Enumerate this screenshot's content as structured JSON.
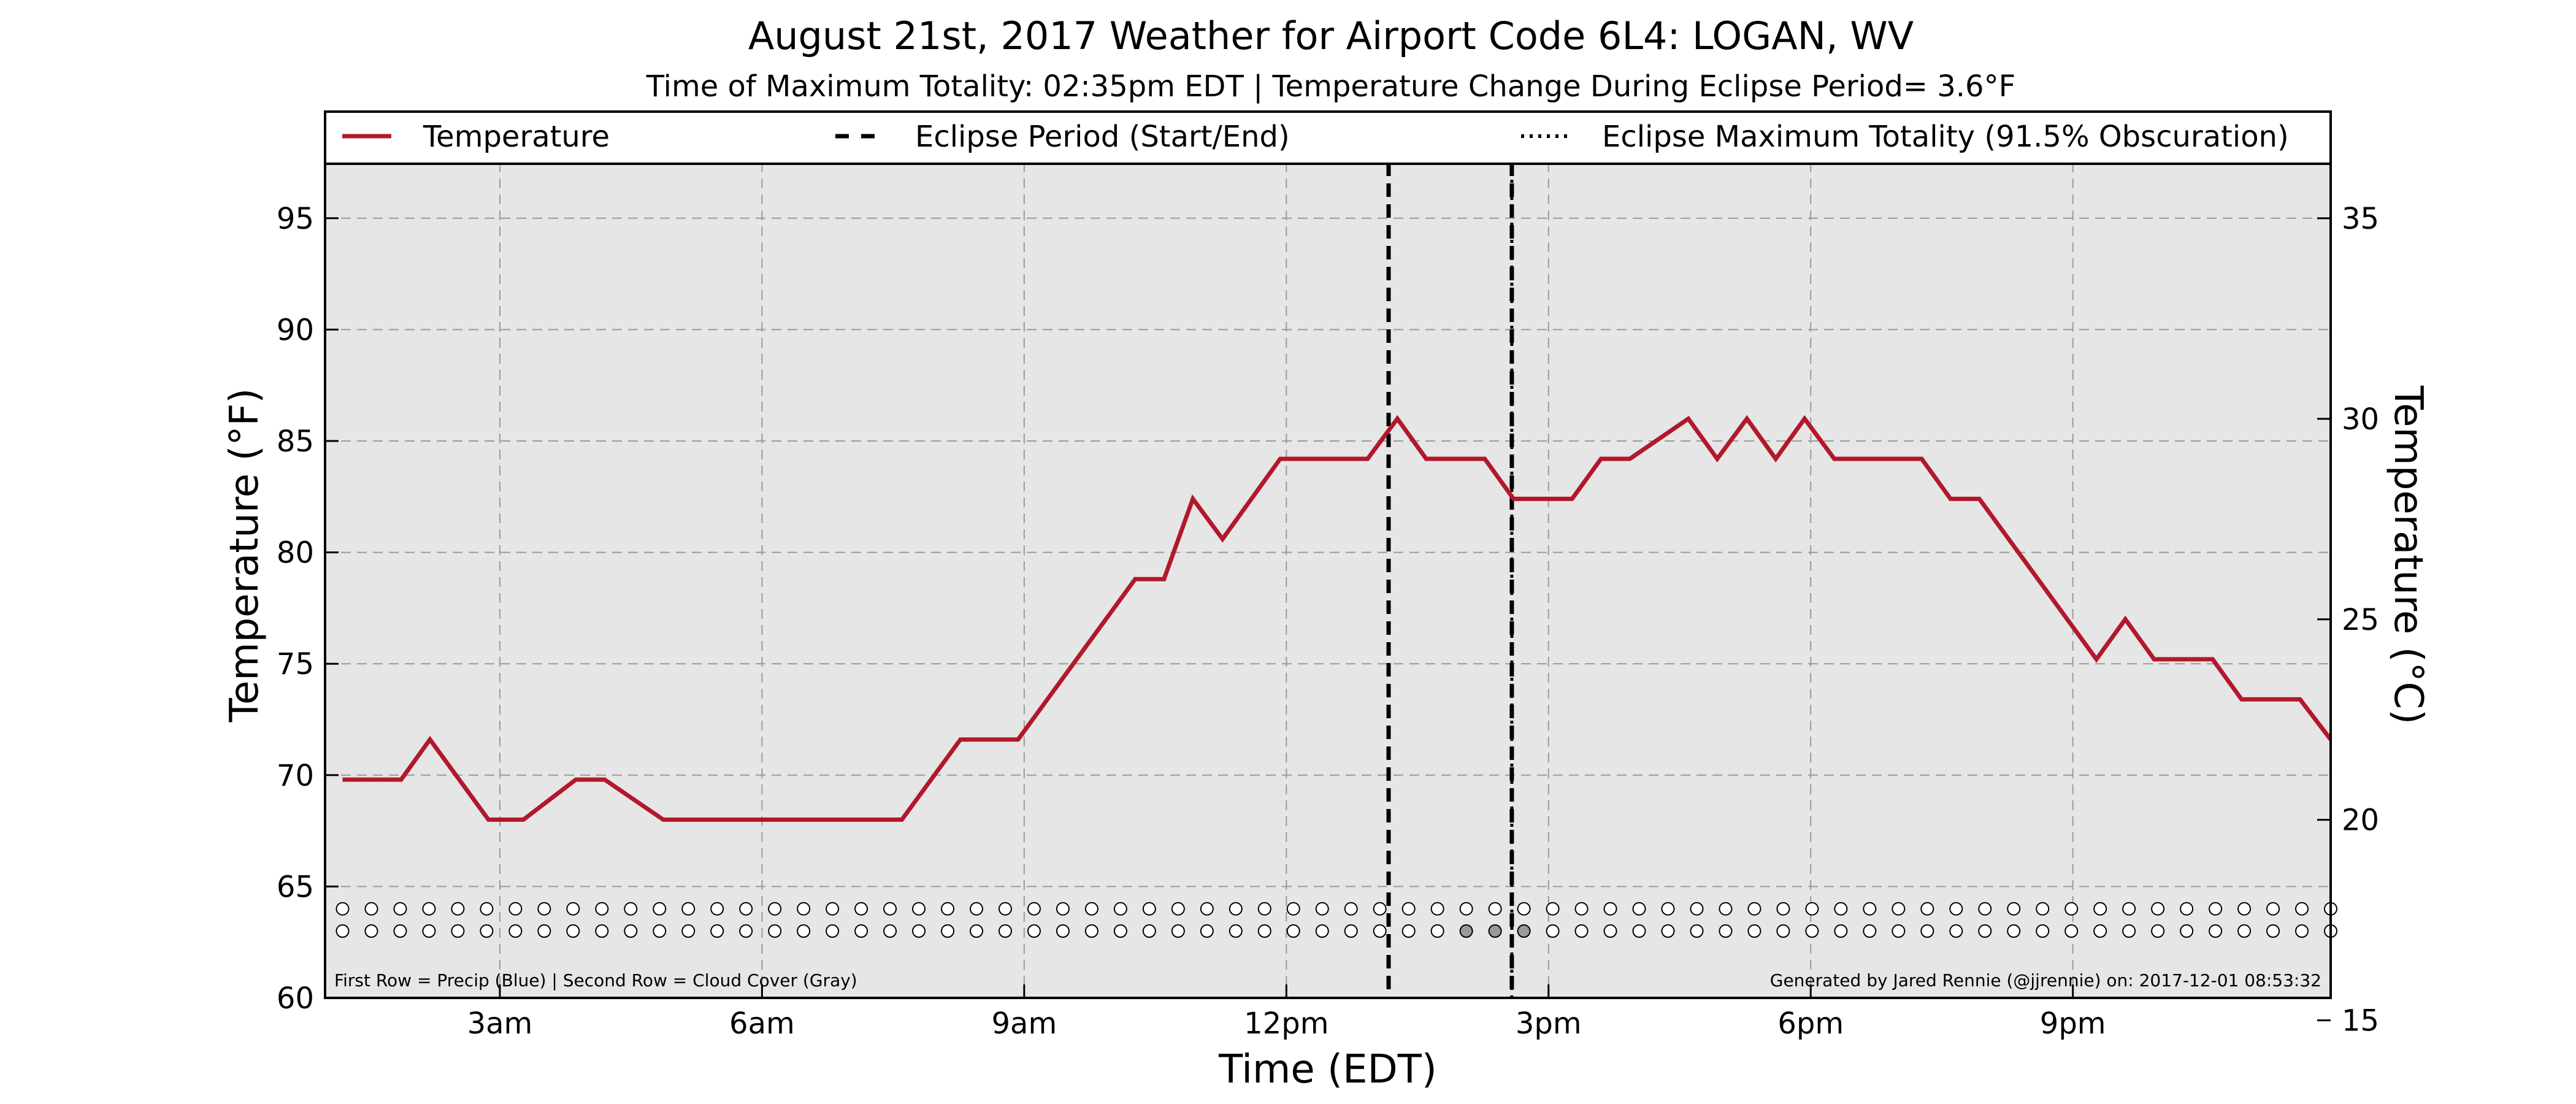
{
  "chart_data": {
    "type": "line",
    "title": "August 21st, 2017 Weather for Airport Code 6L4: LOGAN, WV",
    "subtitle": "Time of Maximum Totality: 02:35pm EDT | Temperature Change During Eclipse Period= 3.6°F",
    "xlabel": "Time (EDT)",
    "ylabel": "Temperature (°F)",
    "y2label": "Temperature (°C)",
    "xlim": [
      1.0,
      23.95
    ],
    "ylim": [
      60,
      97.5
    ],
    "y2lim": [
      15.56,
      36.39
    ],
    "grid": true,
    "legend_position": "top",
    "x_ticks": [
      {
        "x": 3,
        "label": "3am"
      },
      {
        "x": 6,
        "label": "6am"
      },
      {
        "x": 9,
        "label": "9am"
      },
      {
        "x": 12,
        "label": "12pm"
      },
      {
        "x": 15,
        "label": "3pm"
      },
      {
        "x": 18,
        "label": "6pm"
      },
      {
        "x": 21,
        "label": "9pm"
      }
    ],
    "y_ticks": [
      60,
      65,
      70,
      75,
      80,
      85,
      90,
      95
    ],
    "y2_ticks": [
      15,
      20,
      25,
      30,
      35
    ],
    "series": [
      {
        "name": "Temperature",
        "color": "#b2182b",
        "x": [
          1.2,
          1.87,
          2.2,
          2.87,
          3.27,
          3.87,
          4.2,
          4.87,
          5.2,
          7.6,
          8.27,
          8.93,
          10.27,
          10.6,
          10.93,
          11.27,
          11.93,
          12.27,
          12.93,
          13.27,
          13.6,
          14.27,
          14.6,
          15.27,
          15.6,
          15.93,
          16.6,
          16.93,
          17.27,
          17.6,
          17.93,
          18.27,
          19.27,
          19.6,
          19.93,
          21.27,
          21.6,
          21.93,
          22.6,
          22.93,
          23.6,
          23.95
        ],
        "values": [
          69.8,
          69.8,
          71.6,
          68.0,
          68.0,
          69.8,
          69.8,
          68.0,
          68.0,
          68.0,
          71.6,
          71.6,
          78.8,
          78.8,
          82.4,
          80.6,
          84.2,
          84.2,
          84.2,
          86.0,
          84.2,
          84.2,
          82.4,
          82.4,
          84.2,
          84.2,
          86.0,
          84.2,
          86.0,
          84.2,
          86.0,
          84.2,
          84.2,
          82.4,
          82.4,
          75.2,
          77.0,
          75.2,
          75.2,
          73.4,
          73.4,
          71.6
        ]
      }
    ],
    "vertical_lines": [
      {
        "name": "Eclipse Period (Start/End)",
        "style": "dashed",
        "x": [
          13.17,
          14.58
        ]
      },
      {
        "name": "Eclipse Maximum Totality (91.5% Obscuration)",
        "style": "dotted",
        "x": [
          14.58
        ]
      }
    ],
    "marker_rows": {
      "x_start": 1.2,
      "x_end": 23.95,
      "count": 70,
      "precip_y": 64.0,
      "cloud_y": 63.0,
      "cloud_filled_x": [
        14.2,
        14.55,
        14.87
      ],
      "cloud_fill_color": "#999999"
    },
    "footnote_left": "First Row = Precip (Blue) | Second Row = Cloud Cover (Gray)",
    "footnote_right": "Generated by Jared Rennie (@jjrennie) on: 2017-12-01 08:53:32"
  }
}
